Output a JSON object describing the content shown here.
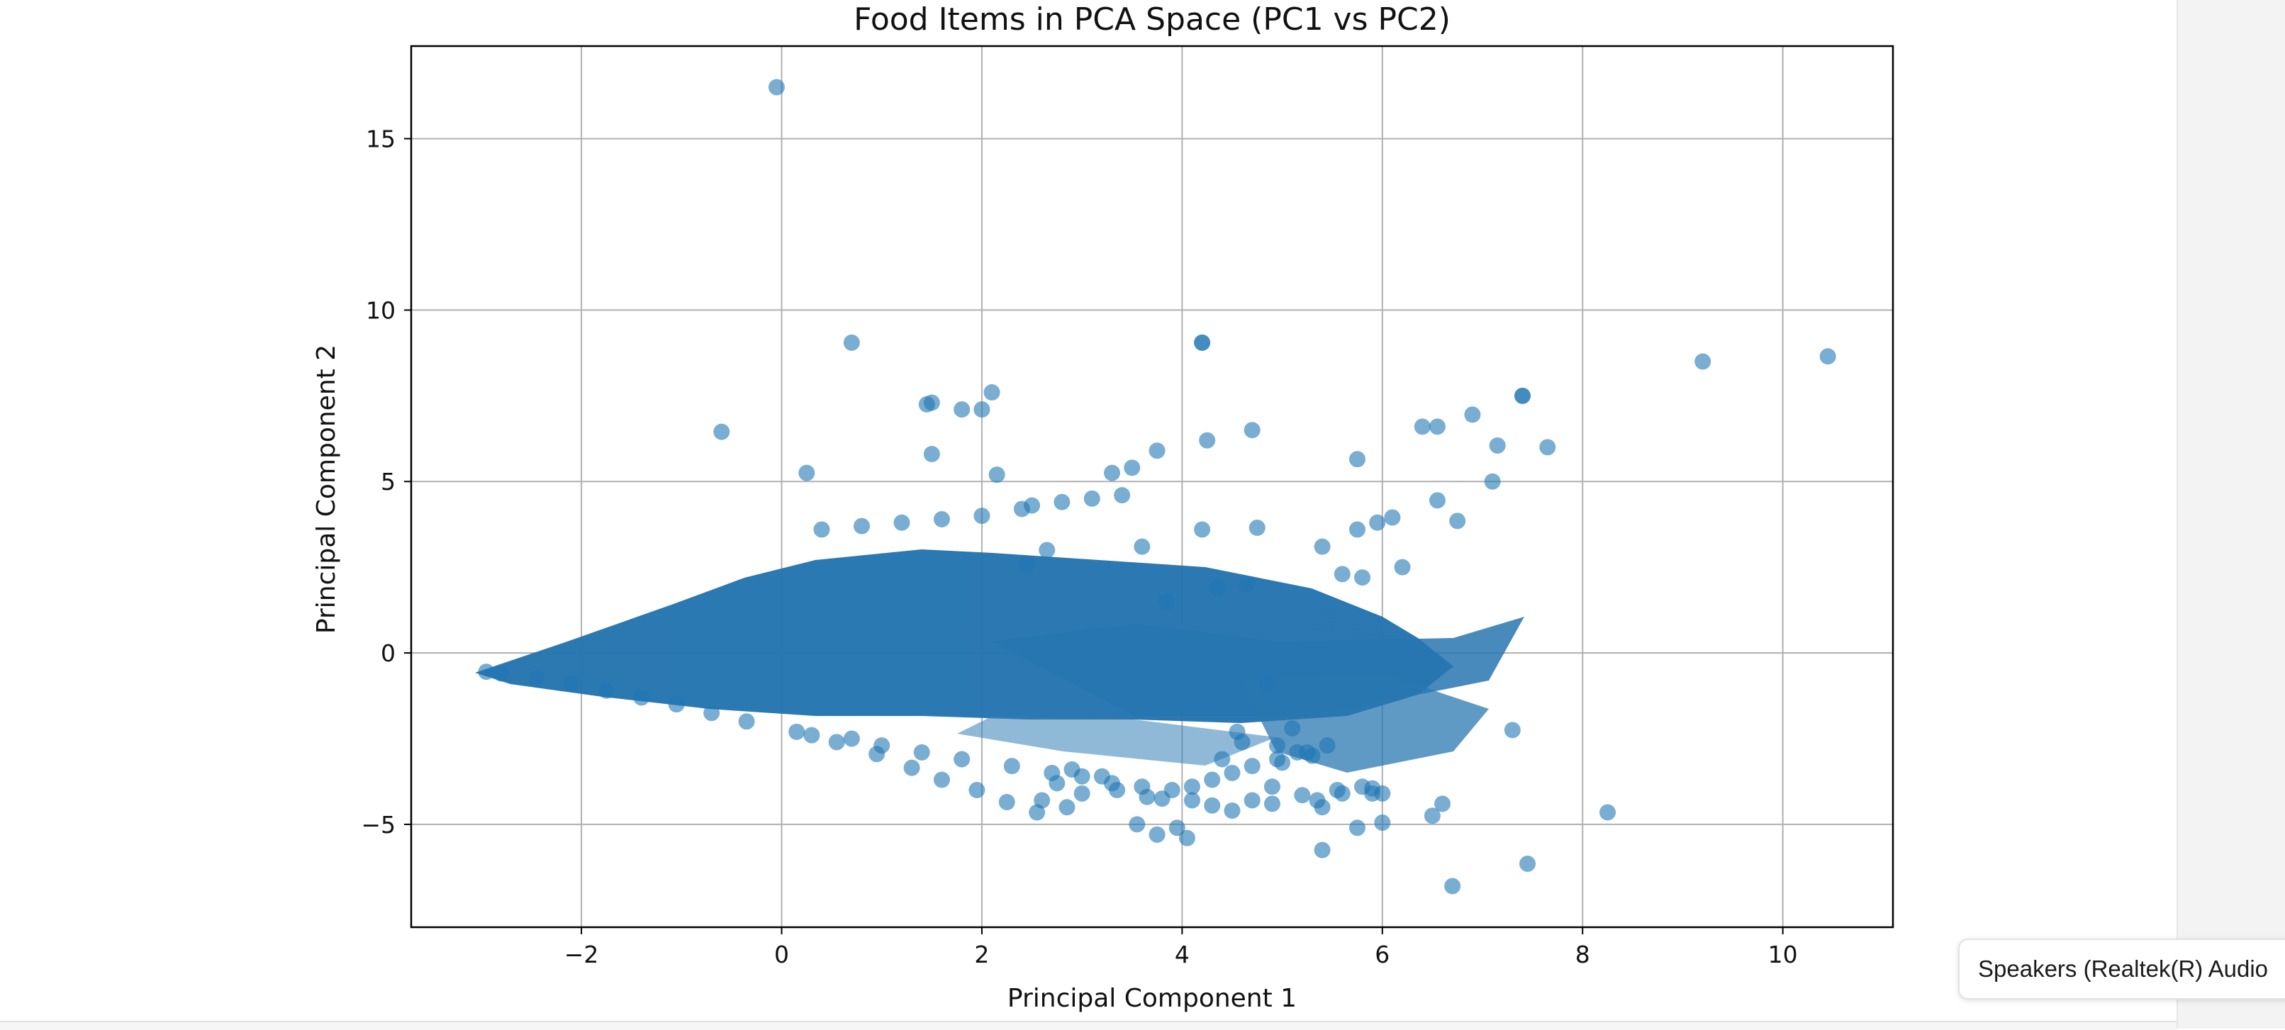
{
  "chart_data": {
    "type": "scatter",
    "title": "Food Items in PCA Space (PC1 vs PC2)",
    "xlabel": "Principal Component 1",
    "ylabel": "Principal Component 2",
    "xlim": [
      -3.7,
      11.1
    ],
    "ylim": [
      -8.0,
      17.7
    ],
    "xticks": [
      -2,
      0,
      2,
      4,
      6,
      8,
      10
    ],
    "xtick_labels": [
      "−2",
      "0",
      "2",
      "4",
      "6",
      "8",
      "10"
    ],
    "yticks": [
      -5,
      0,
      5,
      10,
      15
    ],
    "ytick_labels": [
      "−5",
      "0",
      "5",
      "10",
      "15"
    ],
    "grid": true,
    "marker_color": "#1f77b4",
    "marker_alpha": 0.6,
    "note": "dense core region (thousands of points) forms a wedge from x≈-3 to x≈4",
    "series": [
      {
        "x": [
          -0.05,
          0.7,
          4.2,
          4.2,
          9.2,
          10.45,
          -0.6,
          0.25,
          2.0,
          2.1,
          1.45,
          1.5,
          1.8,
          1.5,
          2.15,
          3.75,
          4.25,
          4.7,
          5.4,
          5.75,
          6.4,
          6.55,
          6.9,
          7.4,
          7.4,
          7.15,
          7.65,
          7.1,
          6.75,
          5.75,
          6.1,
          5.95,
          6.55,
          6.2,
          5.6,
          5.8,
          4.75,
          4.2,
          3.5,
          3.3,
          3.6,
          2.5,
          7.3,
          8.25,
          7.45,
          6.7,
          5.4,
          5.75,
          6.0,
          6.6,
          5.35,
          3.95,
          3.75,
          3.55,
          4.05,
          5.4,
          6.5,
          5.9,
          5.6,
          4.9,
          4.7,
          4.9,
          5.2,
          5.55,
          5.8,
          5.9,
          6.0,
          4.3,
          4.5,
          4.1,
          3.8,
          2.85,
          2.55,
          2.25,
          1.95,
          1.6,
          1.3,
          0.95,
          0.55,
          0.15,
          -0.35,
          -0.7,
          -1.05,
          -1.4,
          -1.75,
          -2.1,
          -2.45,
          -2.8,
          -2.95,
          5.0,
          5.25,
          4.55,
          4.85,
          2.9,
          3.2,
          2.75,
          2.6,
          3.0,
          3.35,
          3.65,
          4.4,
          4.6,
          4.95,
          5.3,
          5.1,
          0.4,
          0.8,
          1.2,
          1.6,
          2.0,
          2.4,
          2.8,
          3.1,
          3.4,
          0.3,
          0.7,
          1.0,
          1.4,
          1.8,
          2.3,
          2.7,
          3.0,
          3.3,
          3.6,
          3.9,
          4.1,
          4.3,
          4.5,
          4.7,
          4.95,
          5.15,
          5.45,
          4.35,
          4.65,
          2.45,
          2.65,
          3.85
        ],
        "y": [
          16.5,
          9.05,
          9.05,
          9.05,
          8.5,
          8.65,
          6.45,
          5.25,
          7.1,
          7.6,
          7.25,
          7.3,
          7.1,
          5.8,
          5.2,
          5.9,
          6.2,
          6.5,
          3.1,
          5.65,
          6.6,
          6.6,
          6.95,
          7.5,
          7.5,
          6.05,
          6.0,
          5.0,
          3.85,
          3.6,
          3.95,
          3.8,
          4.45,
          2.5,
          2.3,
          2.2,
          3.65,
          3.6,
          5.4,
          5.25,
          3.1,
          4.3,
          -2.25,
          -4.65,
          -6.15,
          -6.8,
          -5.75,
          -5.1,
          -4.95,
          -4.4,
          -4.3,
          -5.1,
          -5.3,
          -5.0,
          -5.4,
          -4.5,
          -4.75,
          -3.95,
          -4.1,
          -3.9,
          -4.3,
          -4.4,
          -4.15,
          -4.0,
          -3.9,
          -4.1,
          -4.1,
          -4.45,
          -4.6,
          -4.3,
          -4.25,
          -4.5,
          -4.65,
          -4.35,
          -4.0,
          -3.7,
          -3.35,
          -2.95,
          -2.6,
          -2.3,
          -2.0,
          -1.75,
          -1.5,
          -1.3,
          -1.1,
          -0.9,
          -0.75,
          -0.6,
          -0.55,
          -3.2,
          -2.9,
          -2.3,
          -0.9,
          -3.4,
          -3.6,
          -3.8,
          -4.3,
          -4.1,
          -4.0,
          -4.2,
          -3.1,
          -2.6,
          -2.7,
          -3.0,
          -2.2,
          3.6,
          3.7,
          3.8,
          3.9,
          4.0,
          4.2,
          4.4,
          4.5,
          4.6,
          -2.4,
          -2.5,
          -2.7,
          -2.9,
          -3.1,
          -3.3,
          -3.5,
          -3.6,
          -3.8,
          -3.9,
          -4.0,
          -3.9,
          -3.7,
          -3.5,
          -3.3,
          -3.1,
          -2.9,
          -2.7,
          1.9,
          2.0,
          2.6,
          3.0,
          1.5
        ]
      }
    ]
  },
  "device_tooltip": {
    "text": "Speakers (Realtek(R) Audio"
  }
}
